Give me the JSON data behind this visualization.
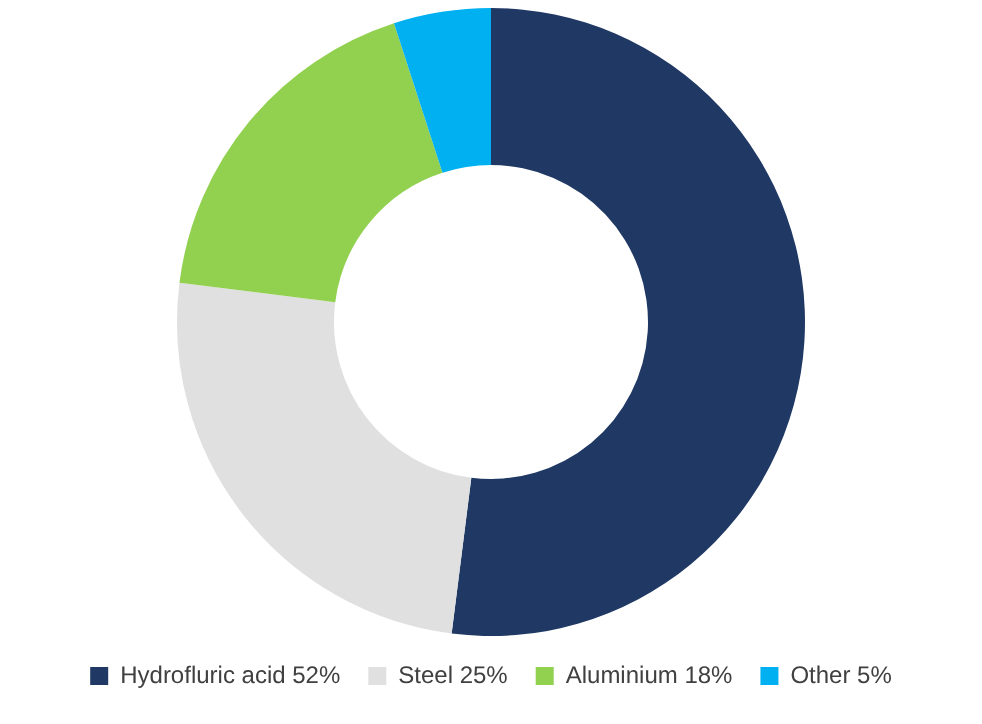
{
  "chart_data": {
    "type": "donut",
    "categories": [
      "Hydrofluric acid 52%",
      "Steel 25%",
      "Aluminium 18%",
      "Other 5%"
    ],
    "values": [
      52,
      25,
      18,
      5
    ],
    "colors": [
      "#1f3864",
      "#e0e0e0",
      "#92d050",
      "#00b0f0"
    ],
    "legend": "bottom"
  }
}
